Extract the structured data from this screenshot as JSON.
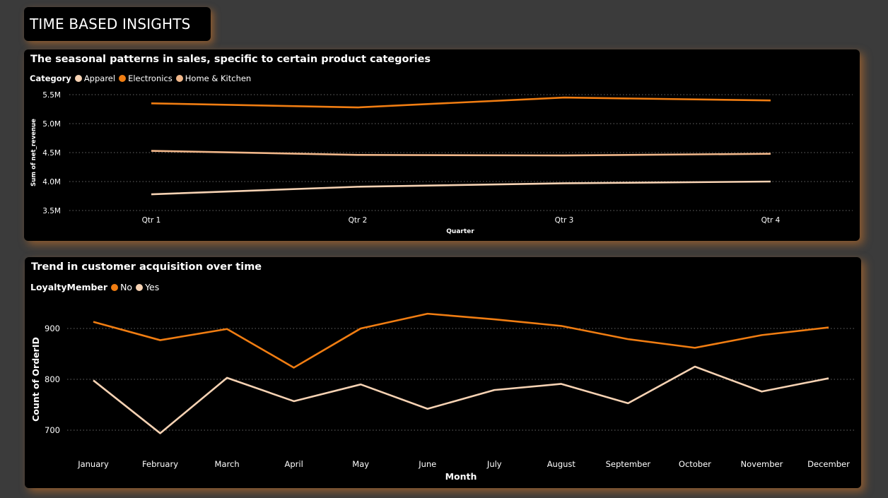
{
  "page_title": "TIME BASED INSIGHTS",
  "colors": {
    "orange": "#f07d12",
    "light_orange": "#f0b689",
    "peach": "#f6d2b3"
  },
  "chart_data": [
    {
      "type": "line",
      "title": "The seasonal patterns in sales, specific to certain product categories",
      "legend_title": "Category",
      "legend_position": "top-left",
      "xlabel": "Quarter",
      "ylabel": "Sum of net_revenue",
      "categories": [
        "Qtr 1",
        "Qtr 2",
        "Qtr 3",
        "Qtr 4"
      ],
      "ylim": [
        3500000,
        5500000
      ],
      "yticks": [
        3500000,
        4000000,
        4500000,
        5000000,
        5500000
      ],
      "ytick_labels": [
        "3.5M",
        "4.0M",
        "4.5M",
        "5.0M",
        "5.5M"
      ],
      "grid": true,
      "series": [
        {
          "name": "Apparel",
          "color": "#f6d2b3",
          "values": [
            3780000,
            3910000,
            3970000,
            4000000
          ]
        },
        {
          "name": "Electronics",
          "color": "#f07d12",
          "values": [
            5350000,
            5280000,
            5450000,
            5400000
          ]
        },
        {
          "name": "Home & Kitchen",
          "color": "#f0b689",
          "values": [
            4530000,
            4460000,
            4450000,
            4480000
          ]
        }
      ]
    },
    {
      "type": "line",
      "title": "Trend in customer acquisition over time",
      "legend_title": "LoyaltyMember",
      "legend_position": "top-left",
      "xlabel": "Month",
      "ylabel": "Count of OrderID",
      "categories": [
        "January",
        "February",
        "March",
        "April",
        "May",
        "June",
        "July",
        "August",
        "September",
        "October",
        "November",
        "December"
      ],
      "ylim": [
        700,
        900
      ],
      "yticks": [
        700,
        800,
        900
      ],
      "ytick_labels": [
        "700",
        "800",
        "900"
      ],
      "grid": true,
      "series": [
        {
          "name": "No",
          "color": "#f07d12",
          "values": [
            913,
            877,
            899,
            823,
            900,
            929,
            918,
            905,
            879,
            862,
            887,
            902
          ]
        },
        {
          "name": "Yes",
          "color": "#f6d2b3",
          "values": [
            798,
            694,
            803,
            757,
            790,
            742,
            779,
            791,
            753,
            825,
            776,
            802
          ]
        }
      ]
    }
  ]
}
